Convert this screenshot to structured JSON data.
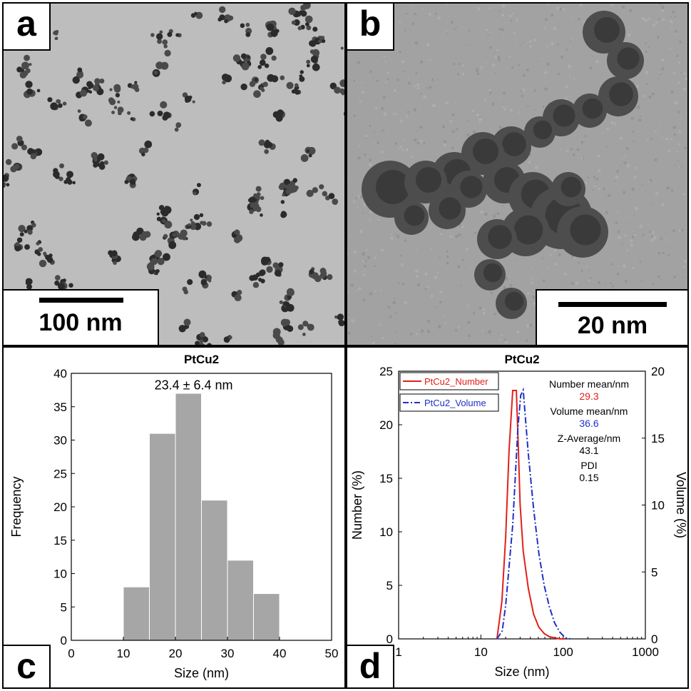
{
  "panel_a": {
    "label": "a",
    "scale_label": "100 nm"
  },
  "panel_b": {
    "label": "b",
    "scale_label": "20 nm"
  },
  "panel_c": {
    "label": "c"
  },
  "panel_d": {
    "label": "d"
  },
  "chart_data": [
    {
      "type": "bar",
      "title": "PtCu2",
      "annotation": "23.4 ± 6.4 nm",
      "xlabel": "Size (nm)",
      "ylabel": "Frequency",
      "xlim": [
        0,
        50
      ],
      "ylim": [
        0,
        40
      ],
      "xticks": [
        0,
        10,
        20,
        30,
        40,
        50
      ],
      "yticks": [
        0,
        5,
        10,
        15,
        20,
        25,
        30,
        35,
        40
      ],
      "bins": [
        [
          10,
          15
        ],
        [
          15,
          20
        ],
        [
          20,
          25
        ],
        [
          25,
          30
        ],
        [
          30,
          35
        ],
        [
          35,
          40
        ]
      ],
      "values": [
        8,
        31,
        37,
        21,
        12,
        7
      ],
      "bar_color": "#a6a6a6",
      "grid": false
    },
    {
      "type": "line",
      "title": "PtCu2",
      "xlabel": "Size (nm)",
      "ylabel": "Number (%)",
      "y2label": "Volume (%)",
      "xscale": "log",
      "xlim": [
        1,
        1000
      ],
      "ylim": [
        0,
        25
      ],
      "y2lim": [
        0,
        20
      ],
      "xticks": [
        "1",
        "10",
        "100",
        "1000"
      ],
      "yticks": [
        0,
        5,
        10,
        15,
        20,
        25
      ],
      "y2ticks": [
        0,
        5,
        10,
        15,
        20
      ],
      "legend": "top-left",
      "series": [
        {
          "name": "PtCu2_Number",
          "axis": "left",
          "color": "#e0201b",
          "style": "solid",
          "x": [
            15.7,
            18,
            20,
            22,
            24.4,
            27,
            28.5,
            30,
            32.7,
            37.8,
            43.8,
            50.7,
            58.8,
            68.1,
            78.8,
            91.3,
            105.7
          ],
          "y": [
            0,
            3.5,
            9.5,
            17.5,
            23.2,
            23.2,
            18,
            12.5,
            8.2,
            4.7,
            2.3,
            1.1,
            0.5,
            0.2,
            0.1,
            0,
            0
          ]
        },
        {
          "name": "PtCu2_Volume",
          "axis": "right",
          "color": "#1f2fc9",
          "style": "dashdot",
          "x": [
            15.7,
            18.2,
            20,
            24.4,
            28.2,
            30.5,
            32.7,
            35,
            37.8,
            43.8,
            50.7,
            58.8,
            68.1,
            78.8,
            91.3,
            105.7,
            122.4
          ],
          "y": [
            0,
            0.6,
            2.5,
            8.5,
            15.8,
            18.2,
            18.6,
            16.3,
            13.8,
            9.7,
            6.4,
            4.0,
            2.4,
            1.2,
            0.5,
            0.1,
            0
          ]
        }
      ],
      "stats": [
        {
          "label": "Number mean/nm",
          "value": "29.3",
          "color": "#e0201b"
        },
        {
          "label": "Volume mean/nm",
          "value": "36.6",
          "color": "#1f2fc9"
        },
        {
          "label": "Z-Average/nm",
          "value": "43.1",
          "color": "#000000"
        },
        {
          "label": "PDI",
          "value": "0.15",
          "color": "#000000"
        }
      ]
    }
  ]
}
